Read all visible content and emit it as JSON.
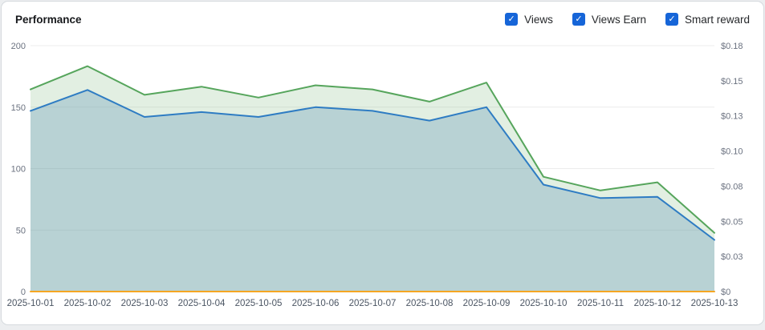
{
  "card": {
    "title": "Performance"
  },
  "legend": [
    {
      "label": "Views",
      "checked": true,
      "color": "#2e7cc3",
      "check_glyph": "✓"
    },
    {
      "label": "Views Earn",
      "checked": true,
      "color": "#56a55c",
      "check_glyph": "✓"
    },
    {
      "label": "Smart reward",
      "checked": true,
      "color": "#f5a623",
      "check_glyph": "✓"
    }
  ],
  "colors": {
    "checkbox_blue": "#1665d8",
    "grid_line": "#ececec",
    "axis_line": "#d9d9d9",
    "tick_label": "#6b7280",
    "x_label": "#4b5563"
  },
  "chart_data": {
    "type": "line",
    "title": "Performance",
    "legend_position": "top-right",
    "grid": true,
    "x": [
      "2025-10-01",
      "2025-10-02",
      "2025-10-03",
      "2025-10-04",
      "2025-10-05",
      "2025-10-06",
      "2025-10-07",
      "2025-10-08",
      "2025-10-09",
      "2025-10-10",
      "2025-10-11",
      "2025-10-12",
      "2025-10-13"
    ],
    "left_axis": {
      "min": 0,
      "max": 200,
      "ticks": [
        0,
        50,
        100,
        150,
        200
      ]
    },
    "right_axis": {
      "min": 0,
      "max": 0.18,
      "tick_labels": [
        "$0",
        "$0.03",
        "$0.05",
        "$0.08",
        "$0.10",
        "$0.13",
        "$0.15",
        "$0.18"
      ]
    },
    "series": [
      {
        "name": "Views Earn",
        "axis": "right",
        "color": "#56a55c",
        "fill": "rgba(110,175,110,0.20)",
        "values": [
          0.148,
          0.165,
          0.144,
          0.15,
          0.142,
          0.151,
          0.148,
          0.139,
          0.153,
          0.084,
          0.074,
          0.08,
          0.043
        ]
      },
      {
        "name": "Views",
        "axis": "left",
        "color": "#2e7cc3",
        "fill": "rgba(95,150,185,0.32)",
        "values": [
          147,
          164,
          142,
          146,
          142,
          150,
          147,
          139,
          150,
          87,
          76,
          77,
          42
        ]
      },
      {
        "name": "Smart reward",
        "axis": "right",
        "color": "#f5a623",
        "fill": null,
        "values": [
          0,
          0,
          0,
          0,
          0,
          0,
          0,
          0,
          0,
          0,
          0,
          0,
          0
        ]
      }
    ]
  }
}
